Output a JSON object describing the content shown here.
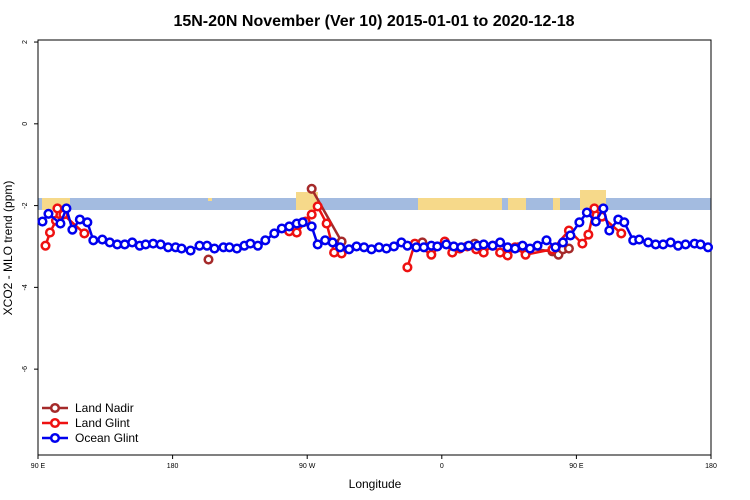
{
  "chart_data": {
    "type": "line",
    "title": "15N-20N November (Ver 10)   2015-01-01 to 2020-12-18",
    "x_label": "Longitude",
    "y_label": "XCO2 - MLO trend (ppm)",
    "xlim": [
      90,
      540
    ],
    "ylim": [
      -8.1,
      2.05
    ],
    "xticks": [
      {
        "value": 90,
        "label": "90 E"
      },
      180,
      {
        "value": 270,
        "label": "90 W"
      },
      {
        "value": 360,
        "label": "0"
      },
      {
        "value": 450,
        "label": "90 E"
      },
      {
        "value": 540,
        "label": "180"
      }
    ],
    "yticks": [
      2,
      0,
      -2,
      -4,
      -6
    ],
    "legend": "bottom-left",
    "series": [
      {
        "name": "Land Nadir",
        "color": "#a52a2a",
        "x": [
          204,
          273,
          293,
          347,
          382,
          411,
          434,
          438,
          441,
          445
        ],
        "values": [
          -3.32,
          -1.59,
          -2.88,
          -2.9,
          -2.93,
          -3.02,
          -3.12,
          -3.2,
          -3.07,
          -3.05
        ]
      },
      {
        "name": "Land Glint",
        "color": "#ee1111",
        "x": [
          95,
          98,
          102,
          103,
          107,
          121,
          258,
          263,
          269,
          273,
          277,
          283,
          288,
          293,
          337,
          342,
          353,
          362,
          367,
          372,
          377,
          383,
          388,
          394,
          399,
          404,
          409,
          416,
          434,
          445,
          454,
          458,
          462,
          467,
          480
        ],
        "values": [
          -2.98,
          -2.66,
          -2.37,
          -2.07,
          -2.22,
          -2.68,
          -2.63,
          -2.66,
          -2.39,
          -2.22,
          -2.02,
          -2.44,
          -3.15,
          -3.17,
          -3.51,
          -2.93,
          -3.2,
          -2.88,
          -3.15,
          -3.05,
          -3.0,
          -3.07,
          -3.15,
          -2.98,
          -3.15,
          -3.22,
          -3.02,
          -3.2,
          -3.07,
          -2.61,
          -2.93,
          -2.71,
          -2.07,
          -2.27,
          -2.68
        ]
      },
      {
        "name": "Ocean Glint",
        "color": "#0000ee",
        "x": [
          93,
          97,
          105,
          109,
          113,
          118,
          123,
          127,
          133,
          138,
          143,
          148,
          153,
          158,
          162,
          167,
          172,
          177,
          182,
          186,
          192,
          198,
          203,
          208,
          214,
          218,
          223,
          228,
          232,
          237,
          242,
          248,
          253,
          258,
          263,
          267,
          273,
          277,
          282,
          287,
          292,
          298,
          303,
          308,
          313,
          318,
          323,
          328,
          333,
          337,
          343,
          348,
          353,
          357,
          363,
          368,
          373,
          378,
          384,
          388,
          394,
          399,
          404,
          409,
          414,
          419,
          424,
          430,
          436,
          441,
          446,
          452,
          457,
          463,
          468,
          472,
          478,
          482,
          488,
          492,
          498,
          503,
          508,
          513,
          518,
          523,
          529,
          533,
          538
        ],
        "values": [
          -2.39,
          -2.2,
          -2.44,
          -2.07,
          -2.59,
          -2.34,
          -2.41,
          -2.85,
          -2.83,
          -2.9,
          -2.95,
          -2.95,
          -2.9,
          -2.98,
          -2.95,
          -2.93,
          -2.95,
          -3.02,
          -3.02,
          -3.05,
          -3.1,
          -2.98,
          -2.98,
          -3.05,
          -3.02,
          -3.02,
          -3.05,
          -2.98,
          -2.93,
          -2.98,
          -2.85,
          -2.68,
          -2.56,
          -2.51,
          -2.44,
          -2.41,
          -2.51,
          -2.95,
          -2.85,
          -2.9,
          -3.02,
          -3.07,
          -3.0,
          -3.02,
          -3.07,
          -3.02,
          -3.05,
          -3.0,
          -2.9,
          -2.98,
          -3.02,
          -3.02,
          -2.98,
          -3.0,
          -2.95,
          -3.0,
          -3.02,
          -2.98,
          -2.98,
          -2.95,
          -2.98,
          -2.9,
          -3.02,
          -3.05,
          -2.98,
          -3.05,
          -2.98,
          -2.85,
          -3.02,
          -2.9,
          -2.73,
          -2.41,
          -2.17,
          -2.39,
          -2.07,
          -2.61,
          -2.34,
          -2.41,
          -2.85,
          -2.83,
          -2.9,
          -2.95,
          -2.95,
          -2.9,
          -2.98,
          -2.95,
          -2.93,
          -2.95,
          -3.02
        ]
      }
    ]
  }
}
